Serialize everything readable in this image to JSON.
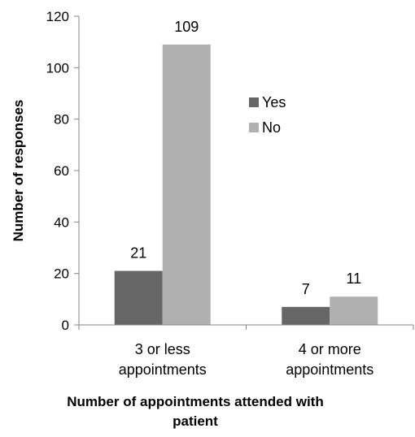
{
  "chart_data": {
    "type": "bar",
    "title": "",
    "xlabel": "Number of appointments attended  with patient",
    "xlabel_lines": [
      "Number of appointments attended  with",
      "patient"
    ],
    "ylabel": "Number of responses",
    "ylim": [
      0,
      120
    ],
    "yticks": [
      0,
      20,
      40,
      60,
      80,
      100,
      120
    ],
    "categories": [
      "3 or less appointments",
      "4 or more appointments"
    ],
    "category_lines": [
      [
        "3 or less",
        "appointments"
      ],
      [
        "4 or more",
        "appointments"
      ]
    ],
    "series": [
      {
        "name": "Yes",
        "color": "#666666",
        "values": [
          21,
          7
        ]
      },
      {
        "name": "No",
        "color": "#b0b0b0",
        "values": [
          109,
          11
        ]
      }
    ],
    "data_labels": true,
    "grid": false,
    "legend": "right"
  }
}
